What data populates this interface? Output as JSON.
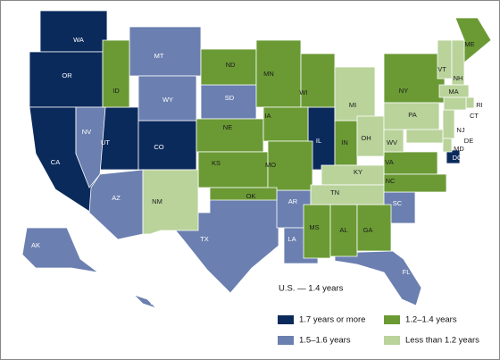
{
  "map": {
    "note": "U.S. — 1.4 years",
    "legend": [
      {
        "label": "1.7 years or more",
        "color": "#0b2a5c",
        "states": [
          "WA",
          "OR",
          "CA",
          "UT",
          "CO",
          "IL",
          "DC"
        ]
      },
      {
        "label": "1.5–1.6 years",
        "color": "#6b7fb0",
        "states": [
          "MT",
          "WY",
          "SD",
          "NV",
          "AZ",
          "TX",
          "AR",
          "LA",
          "SC",
          "FL",
          "AK",
          "HI"
        ]
      },
      {
        "label": "1.2–1.4 years",
        "color": "#6b9a35",
        "states": [
          "ID",
          "ND",
          "MN",
          "WI",
          "NE",
          "IA",
          "KS",
          "MO",
          "OK",
          "IN",
          "NY",
          "ME",
          "VA",
          "NC",
          "MS",
          "AL",
          "GA"
        ]
      },
      {
        "label": "Less than 1.2 years",
        "color": "#b9d39b",
        "states": [
          "NM",
          "MI",
          "OH",
          "KY",
          "TN",
          "WV",
          "PA",
          "NJ",
          "DE",
          "MD",
          "VT",
          "NH",
          "MA",
          "RI",
          "CT"
        ]
      }
    ]
  }
}
